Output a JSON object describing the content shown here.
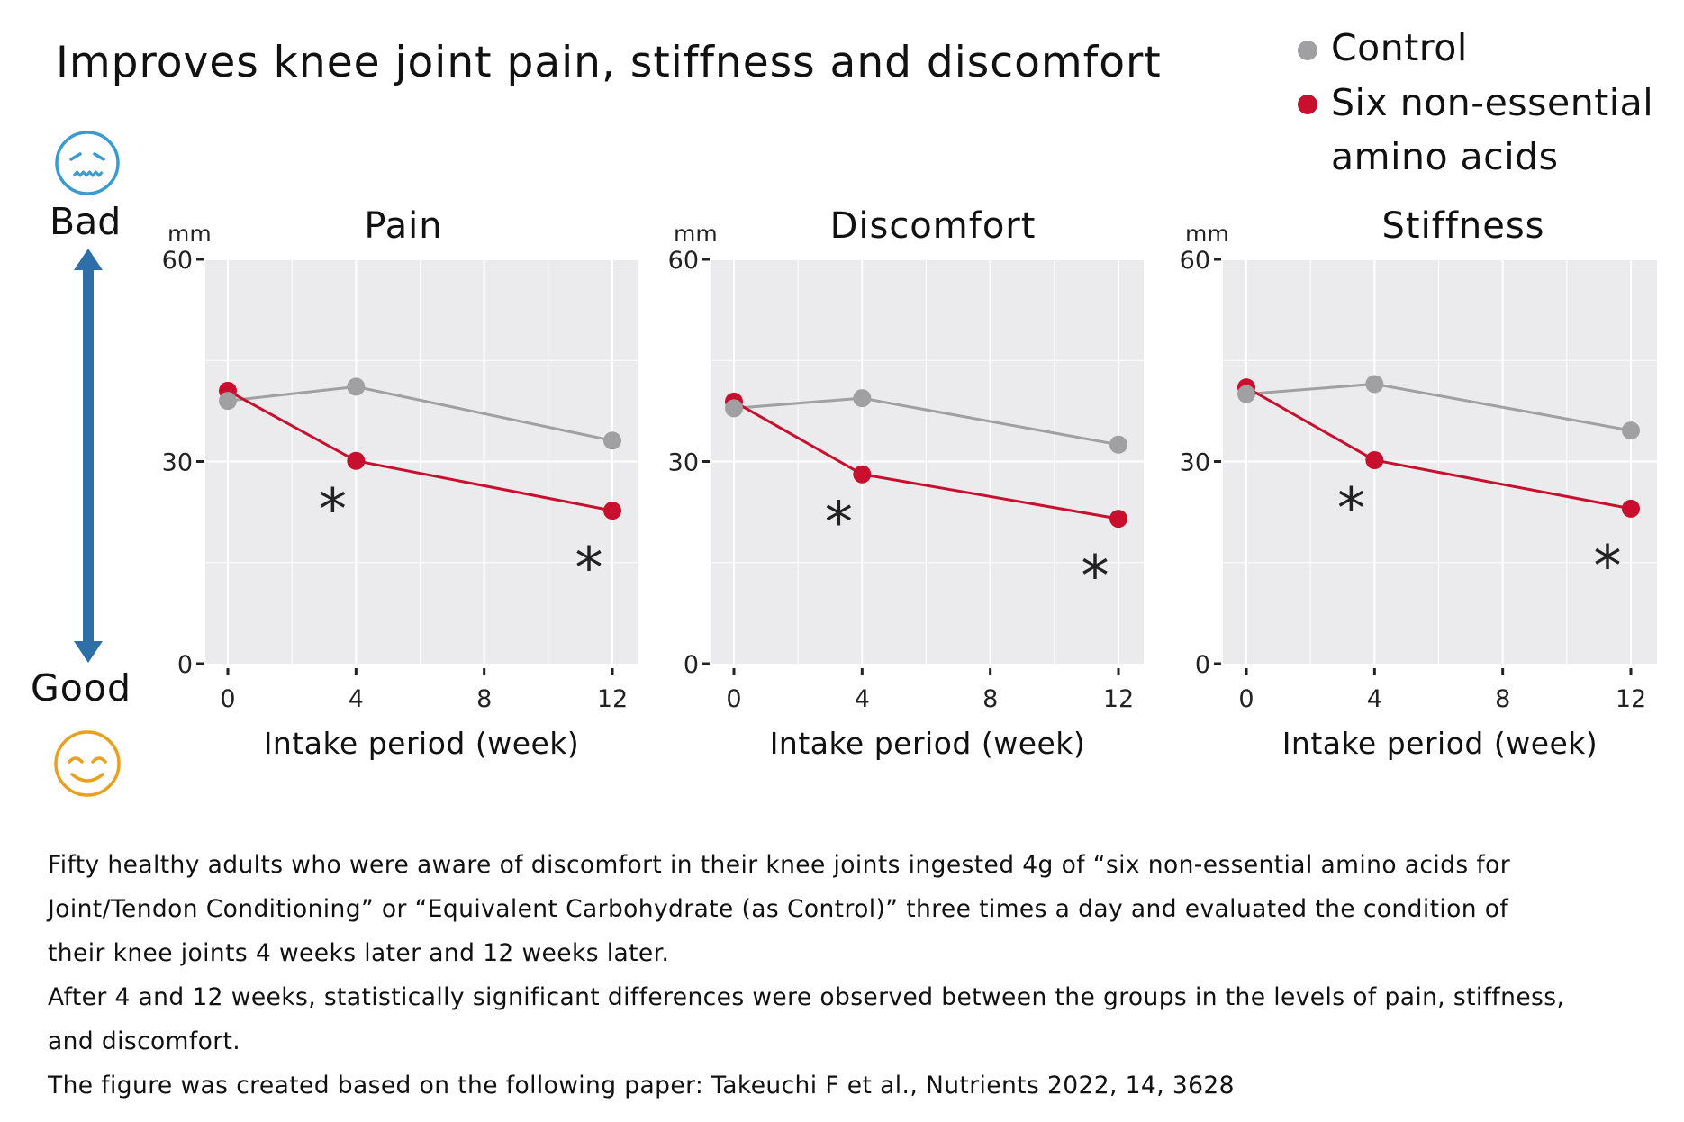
{
  "title": "Improves knee joint pain, stiffness and discomfort",
  "legend": [
    {
      "label": "Control",
      "color": "#a0a0a2"
    },
    {
      "label_line1": "Six non-essential",
      "label_line2": "amino acids",
      "color": "#c8102e"
    }
  ],
  "scale": {
    "bad_label": "Bad",
    "good_label": "Good",
    "bad_icon": "worried-face-icon",
    "good_icon": "smiling-face-icon",
    "arrow_icon": "double-arrow-vertical-icon",
    "arrow_color": "#2e6fa7",
    "bad_color": "#3a9bd0",
    "good_color": "#e8a020"
  },
  "colors": {
    "control": "#a0a0a2",
    "treatment": "#c8102e",
    "panel_bg": "#ebebed",
    "grid": "#ffffff"
  },
  "chart_data": [
    {
      "type": "line",
      "title": "Pain",
      "xlabel": "Intake period (week)",
      "ylabel": "mm",
      "x": [
        0,
        4,
        12
      ],
      "xticks": [
        "0",
        "4",
        "8",
        "12"
      ],
      "yticks": [
        "0",
        "30",
        "60"
      ],
      "xlim": [
        0,
        12
      ],
      "ylim": [
        0,
        60
      ],
      "grid": true,
      "legend": "top-right",
      "series": [
        {
          "name": "Control",
          "values": [
            39.0,
            41.1,
            33.1
          ]
        },
        {
          "name": "Six non-essential amino acids",
          "values": [
            40.5,
            30.1,
            22.7
          ]
        }
      ],
      "annotations": [
        {
          "text": "*",
          "x": 4,
          "meaning": "significant difference"
        },
        {
          "text": "*",
          "x": 12,
          "meaning": "significant difference"
        }
      ]
    },
    {
      "type": "line",
      "title": "Discomfort",
      "xlabel": "Intake period (week)",
      "ylabel": "mm",
      "x": [
        0,
        4,
        12
      ],
      "xticks": [
        "0",
        "4",
        "8",
        "12"
      ],
      "yticks": [
        "0",
        "30",
        "60"
      ],
      "xlim": [
        0,
        12
      ],
      "ylim": [
        0,
        60
      ],
      "grid": true,
      "legend": "top-right",
      "series": [
        {
          "name": "Control",
          "values": [
            37.9,
            39.4,
            32.5
          ]
        },
        {
          "name": "Six non-essential amino acids",
          "values": [
            38.9,
            28.1,
            21.5
          ]
        }
      ],
      "annotations": [
        {
          "text": "*",
          "x": 4,
          "meaning": "significant difference"
        },
        {
          "text": "*",
          "x": 12,
          "meaning": "significant difference"
        }
      ]
    },
    {
      "type": "line",
      "title": "Stiffness",
      "xlabel": "Intake period (week)",
      "ylabel": "mm",
      "x": [
        0,
        4,
        12
      ],
      "xticks": [
        "0",
        "4",
        "8",
        "12"
      ],
      "yticks": [
        "0",
        "30",
        "60"
      ],
      "xlim": [
        0,
        12
      ],
      "ylim": [
        0,
        60
      ],
      "grid": true,
      "legend": "top-right",
      "series": [
        {
          "name": "Control",
          "values": [
            40.0,
            41.5,
            34.6
          ]
        },
        {
          "name": "Six non-essential amino acids",
          "values": [
            41.0,
            30.2,
            23.0
          ]
        }
      ],
      "annotations": [
        {
          "text": "*",
          "x": 4,
          "meaning": "significant difference"
        },
        {
          "text": "*",
          "x": 12,
          "meaning": "significant difference"
        }
      ]
    }
  ],
  "caption": [
    "Fifty healthy adults who were aware of discomfort in their knee joints ingested 4g of “six non-essential amino acids for",
    "Joint/Tendon Conditioning” or “Equivalent Carbohydrate (as Control)” three times a day and evaluated the condition of",
    "their knee joints 4 weeks later and 12 weeks later.",
    "After 4 and 12 weeks, statistically significant differences were observed between the groups in the levels of pain, stiffness,",
    "and discomfort.",
    "The figure was created based on the following paper: Takeuchi F et al., Nutrients 2022, 14, 3628"
  ]
}
